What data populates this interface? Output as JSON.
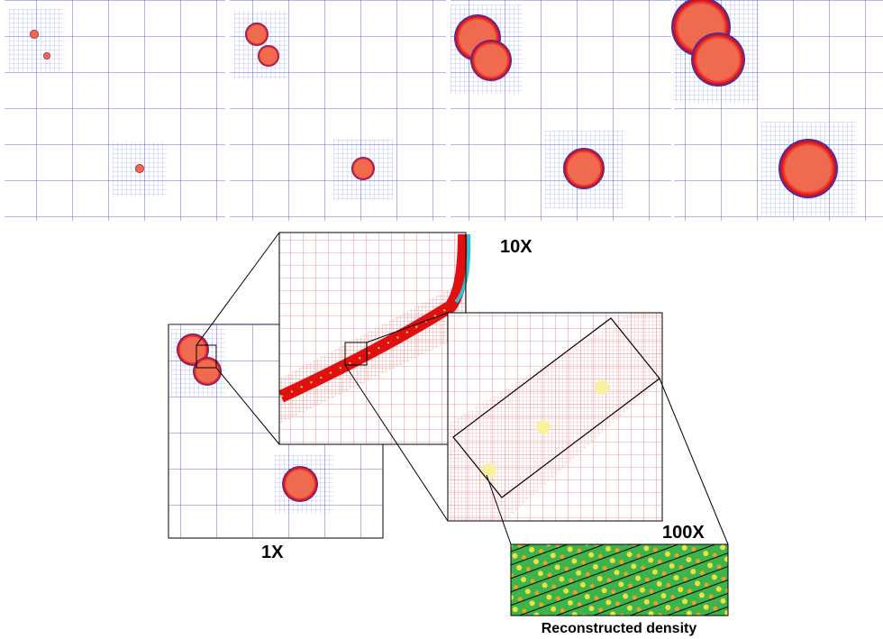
{
  "labels": {
    "zoom_10x": "10X",
    "zoom_1x": "1X",
    "zoom_100x": "100X",
    "caption": "Reconstructed density"
  }
}
